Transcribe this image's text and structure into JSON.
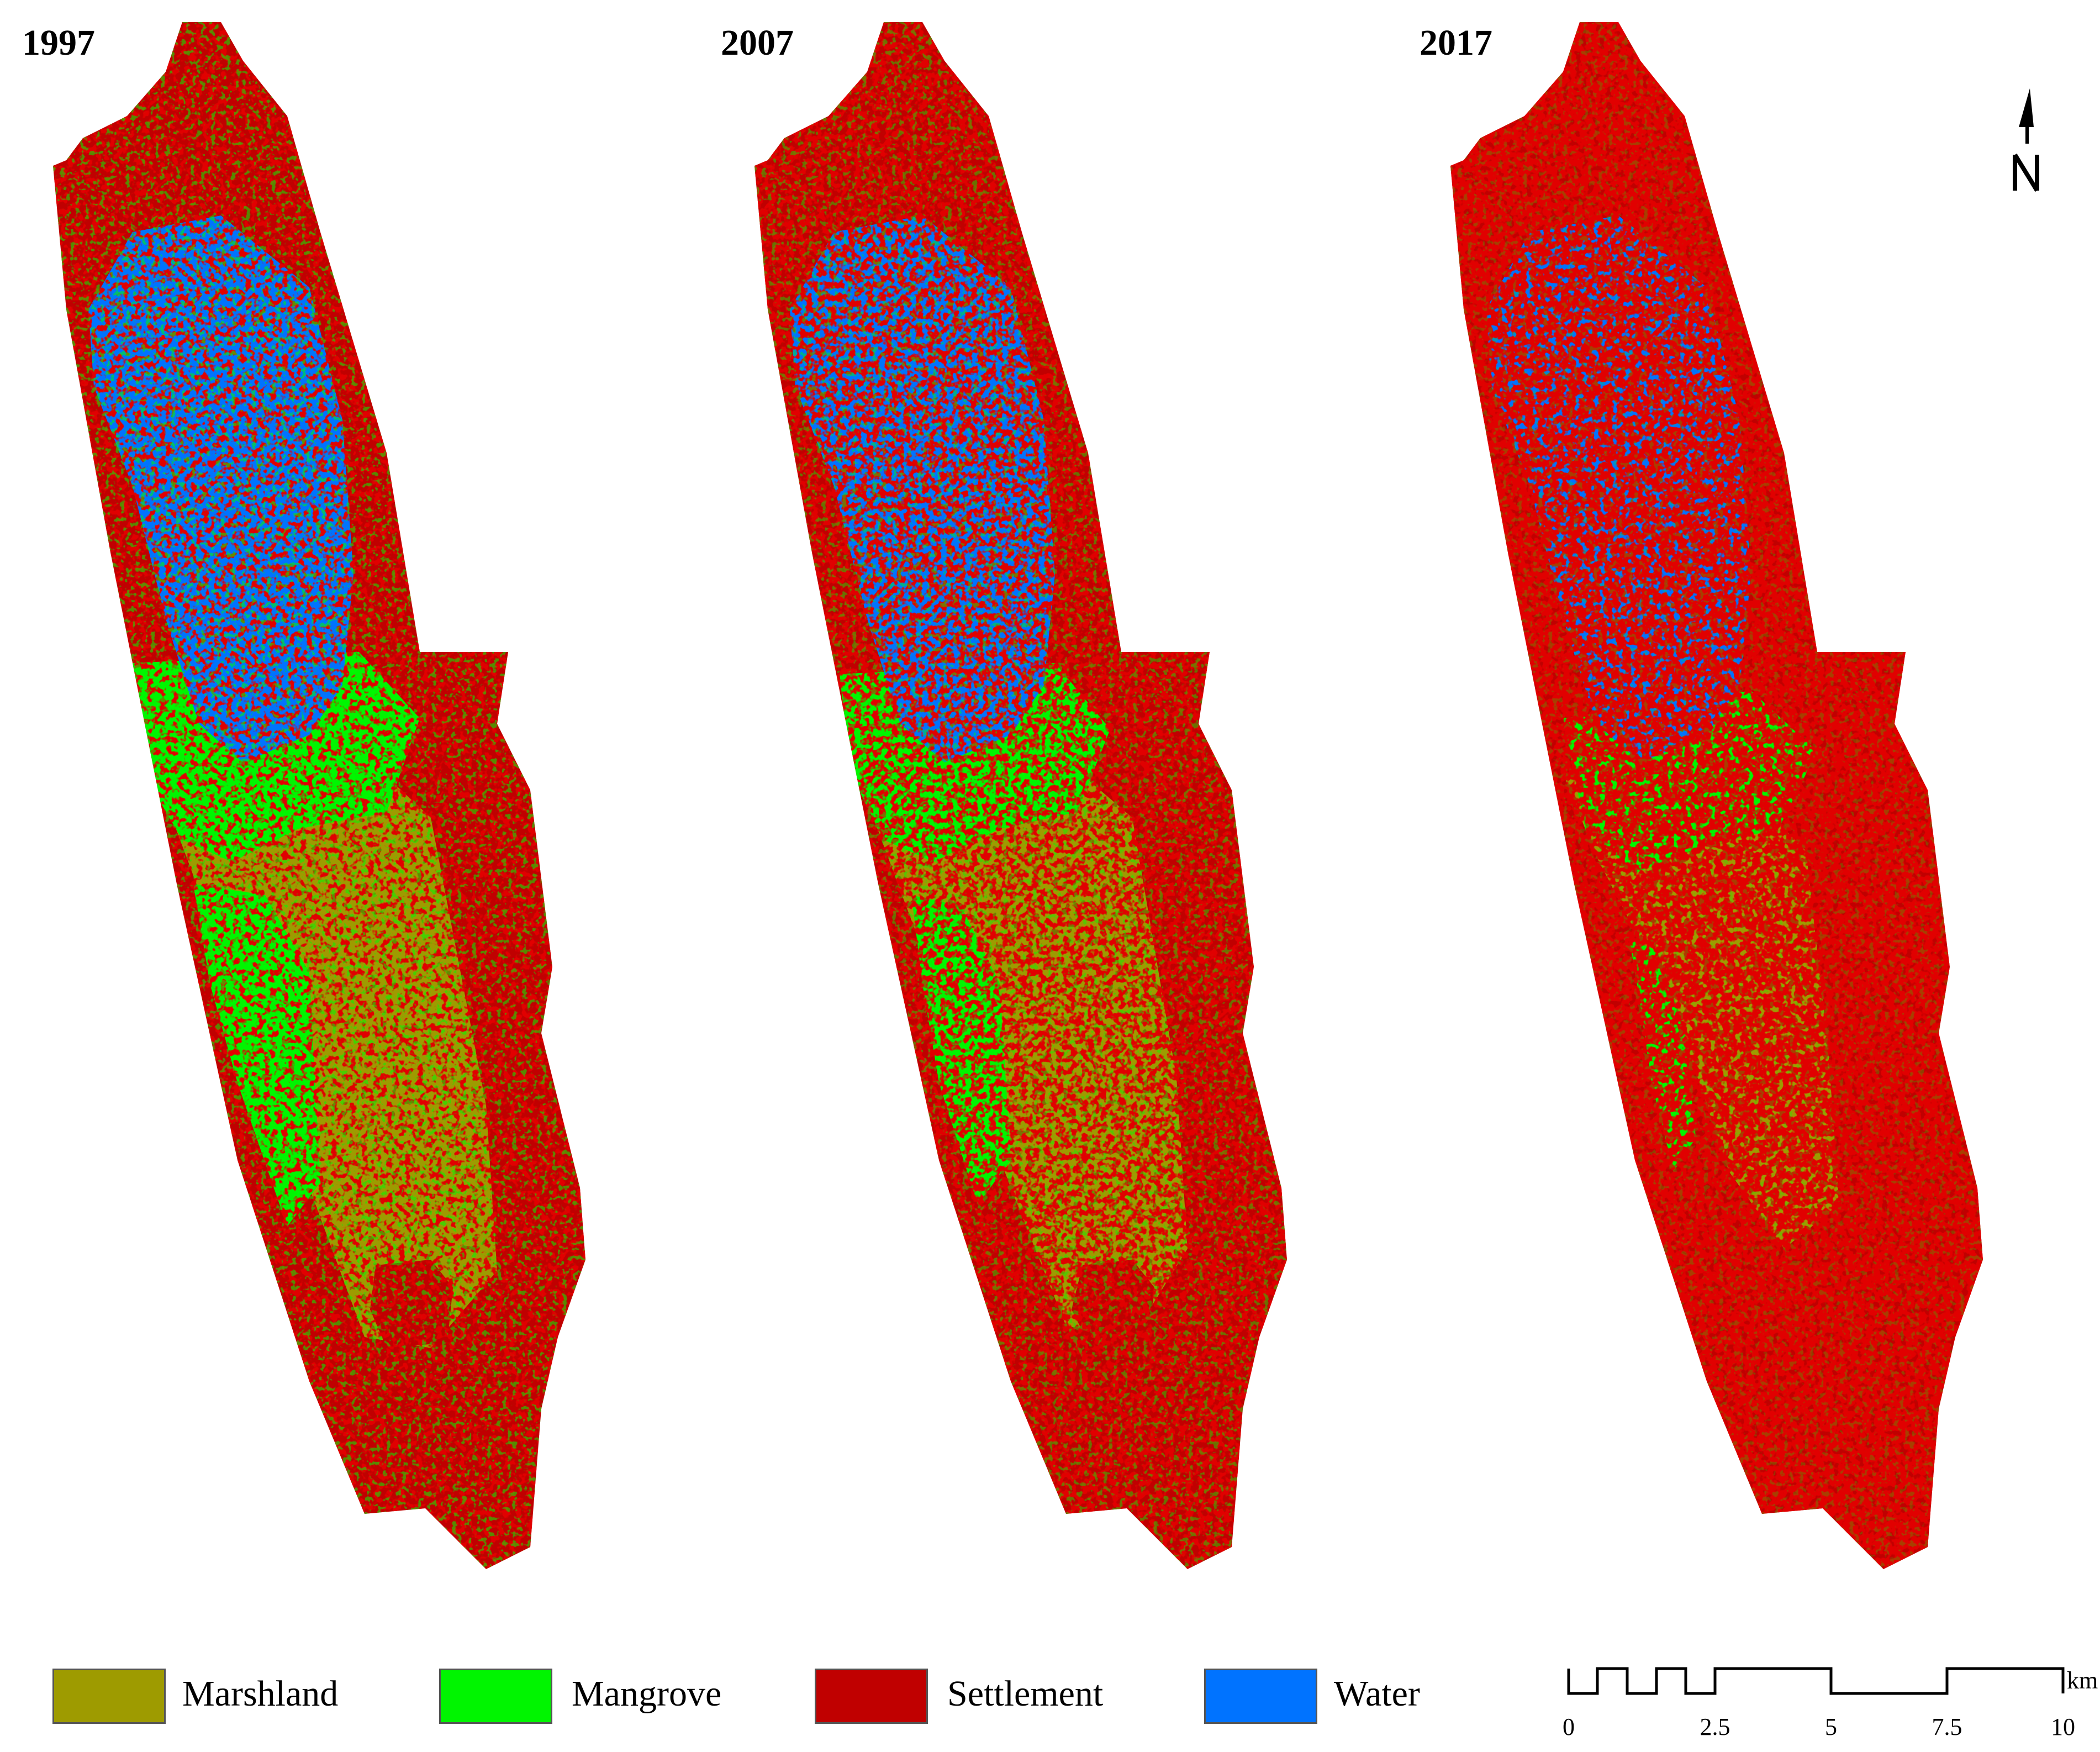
{
  "panels": [
    {
      "year": "1997",
      "stage": 0
    },
    {
      "year": "2007",
      "stage": 1
    },
    {
      "year": "2017",
      "stage": 2
    }
  ],
  "legend": [
    {
      "label": "Marshland",
      "color": "#9E9B00"
    },
    {
      "label": "Mangrove",
      "color": "#00F500"
    },
    {
      "label": "Settlement",
      "color": "#C00000"
    },
    {
      "label": "Water",
      "color": "#0073FF"
    }
  ],
  "scale_bar": {
    "unit": "km",
    "ticks": [
      "0",
      "2.5",
      "5",
      "7.5",
      "10"
    ]
  },
  "north_arrow": {
    "label": "N"
  }
}
